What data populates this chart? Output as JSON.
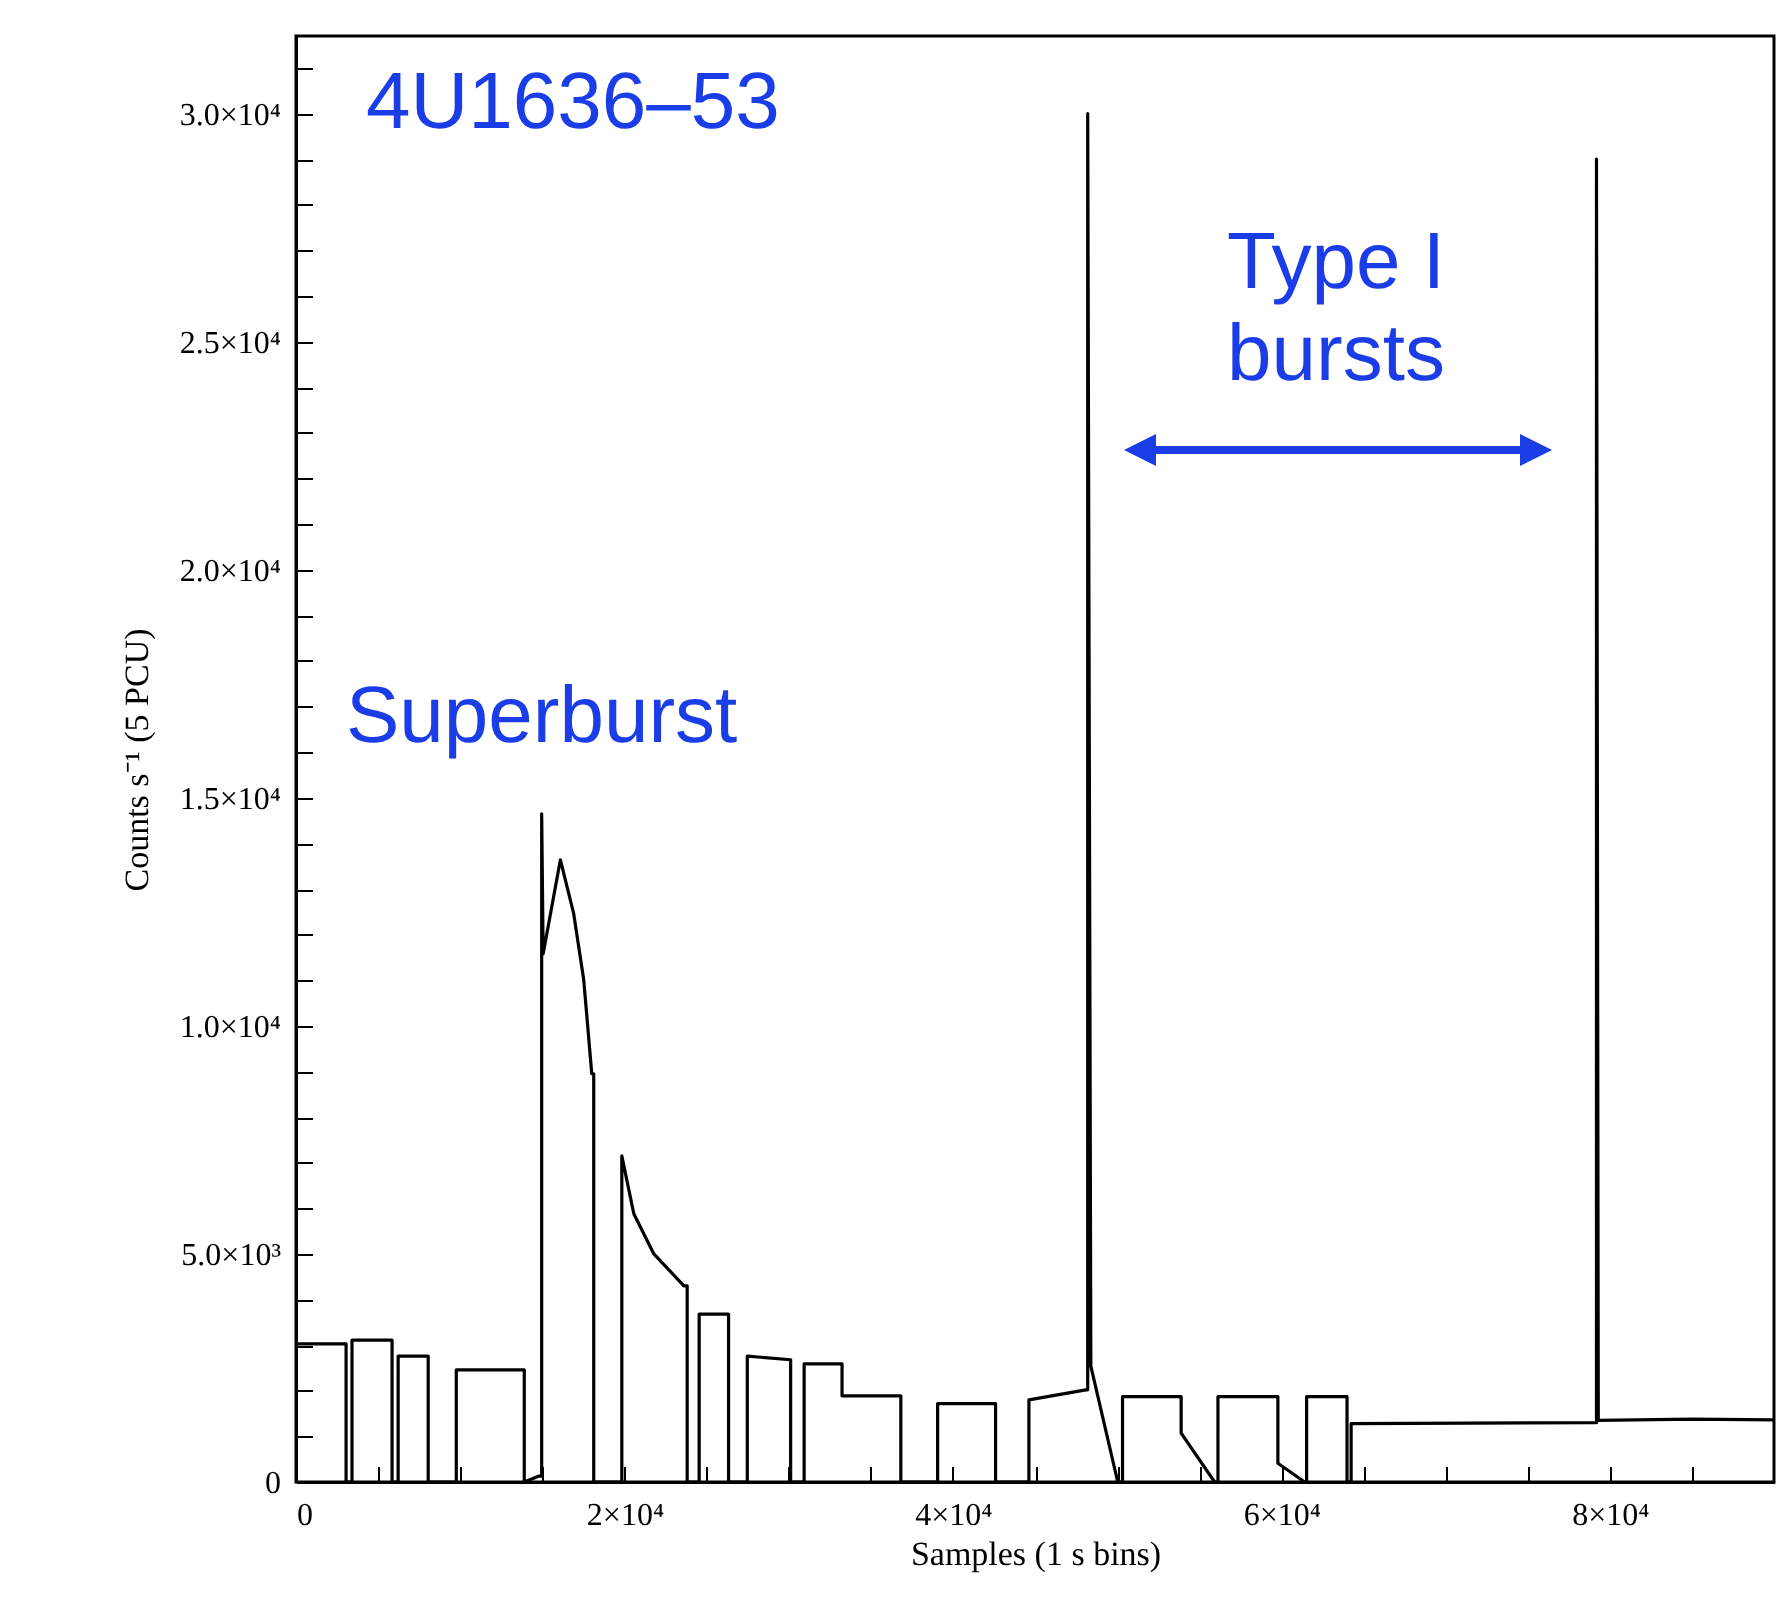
{
  "chart_data": {
    "type": "line",
    "xlabel": "Samples (1 s bins)",
    "ylabel": "Counts s⁻¹ (5 PCU)",
    "annotations": [
      "4U1636–53",
      "Superburst",
      "Type I bursts"
    ],
    "xlim": [
      0,
      90000
    ],
    "ylim": [
      0,
      31700
    ],
    "xticks": [
      0,
      {
        "value": 5000,
        "label": null
      },
      {
        "value": 10000,
        "label": null
      },
      {
        "value": 15000,
        "label": null
      },
      {
        "value": 20000,
        "label": "2×10⁴"
      },
      {
        "value": 25000,
        "label": null
      },
      {
        "value": 30000,
        "label": null
      },
      {
        "value": 35000,
        "label": null
      },
      {
        "value": 40000,
        "label": "4×10⁴"
      },
      {
        "value": 45000,
        "label": null
      },
      {
        "value": 50000,
        "label": null
      },
      {
        "value": 55000,
        "label": null
      },
      {
        "value": 60000,
        "label": "6×10⁴"
      },
      {
        "value": 65000,
        "label": null
      },
      {
        "value": 70000,
        "label": null
      },
      {
        "value": 75000,
        "label": null
      },
      {
        "value": 80000,
        "label": "8×10⁴"
      },
      {
        "value": 85000,
        "label": null
      }
    ],
    "yticks": [
      0,
      {
        "value": 1000,
        "label": null
      },
      {
        "value": 2000,
        "label": null
      },
      {
        "value": 3000,
        "label": null
      },
      {
        "value": 4000,
        "label": null
      },
      {
        "value": 5000,
        "label": "5.0×10³"
      },
      {
        "value": 6000,
        "label": null
      },
      {
        "value": 7000,
        "label": null
      },
      {
        "value": 8000,
        "label": null
      },
      {
        "value": 9000,
        "label": null
      },
      {
        "value": 10000,
        "label": "1.0×10⁴"
      },
      {
        "value": 11000,
        "label": null
      },
      {
        "value": 12000,
        "label": null
      },
      {
        "value": 13000,
        "label": null
      },
      {
        "value": 14000,
        "label": null
      },
      {
        "value": 15000,
        "label": "1.5×10⁴"
      },
      {
        "value": 16000,
        "label": null
      },
      {
        "value": 17000,
        "label": null
      },
      {
        "value": 18000,
        "label": null
      },
      {
        "value": 19000,
        "label": null
      },
      {
        "value": 20000,
        "label": "2.0×10⁴"
      },
      {
        "value": 21000,
        "label": null
      },
      {
        "value": 22000,
        "label": null
      },
      {
        "value": 23000,
        "label": null
      },
      {
        "value": 24000,
        "label": null
      },
      {
        "value": 25000,
        "label": "2.5×10⁴"
      },
      {
        "value": 26000,
        "label": null
      },
      {
        "value": 27000,
        "label": null
      },
      {
        "value": 28000,
        "label": null
      },
      {
        "value": 29000,
        "label": null
      },
      {
        "value": 30000,
        "label": "3.0×10⁴"
      },
      {
        "value": 31000,
        "label": null
      }
    ],
    "grid": false,
    "marker": "none",
    "line_style": "solid",
    "series": [
      {
        "color": "#000000",
        "x": [
          0,
          3050,
          3050,
          3410,
          3410,
          5850,
          5850,
          6220,
          6220,
          8050,
          8050,
          9760,
          9760,
          13900,
          13900,
          14800,
          14960,
          14960,
          15050,
          16100,
          16910,
          17520,
          18010,
          18130,
          18130,
          19840,
          19840,
          20570,
          21790,
          23620,
          23820,
          23820,
          24550,
          24550,
          26340,
          26340,
          27480,
          27480,
          30120,
          30120,
          30940,
          30940,
          33250,
          33250,
          36830,
          36830,
          39070,
          39070,
          42600,
          42600,
          44630,
          44630,
          48100,
          48210,
          48210,
          48400,
          50040,
          50330,
          50330,
          53900,
          53900,
          55940,
          56140,
          56140,
          59790,
          59790,
          61420,
          61540,
          61540,
          64000,
          64000,
          64250,
          64250,
          79100,
          79190,
          79190,
          79300,
          85000,
          90000
        ],
        "values": [
          3030,
          3030,
          0,
          0,
          3110,
          3110,
          0,
          0,
          2760,
          2760,
          0,
          0,
          2460,
          2460,
          0,
          130,
          130,
          14650,
          11580,
          13640,
          12460,
          11010,
          8950,
          8950,
          0,
          0,
          7150,
          5880,
          5000,
          4300,
          4300,
          0,
          0,
          3680,
          3680,
          0,
          0,
          2760,
          2680,
          0,
          0,
          2590,
          2590,
          1890,
          1890,
          0,
          0,
          1720,
          1720,
          0,
          0,
          1800,
          2020,
          2020,
          30000,
          2540,
          0,
          0,
          1870,
          1870,
          1070,
          0,
          0,
          1870,
          1870,
          410,
          0,
          0,
          1870,
          1870,
          0,
          0,
          1280,
          1300,
          1300,
          29000,
          1350,
          1380,
          1360
        ]
      }
    ]
  }
}
